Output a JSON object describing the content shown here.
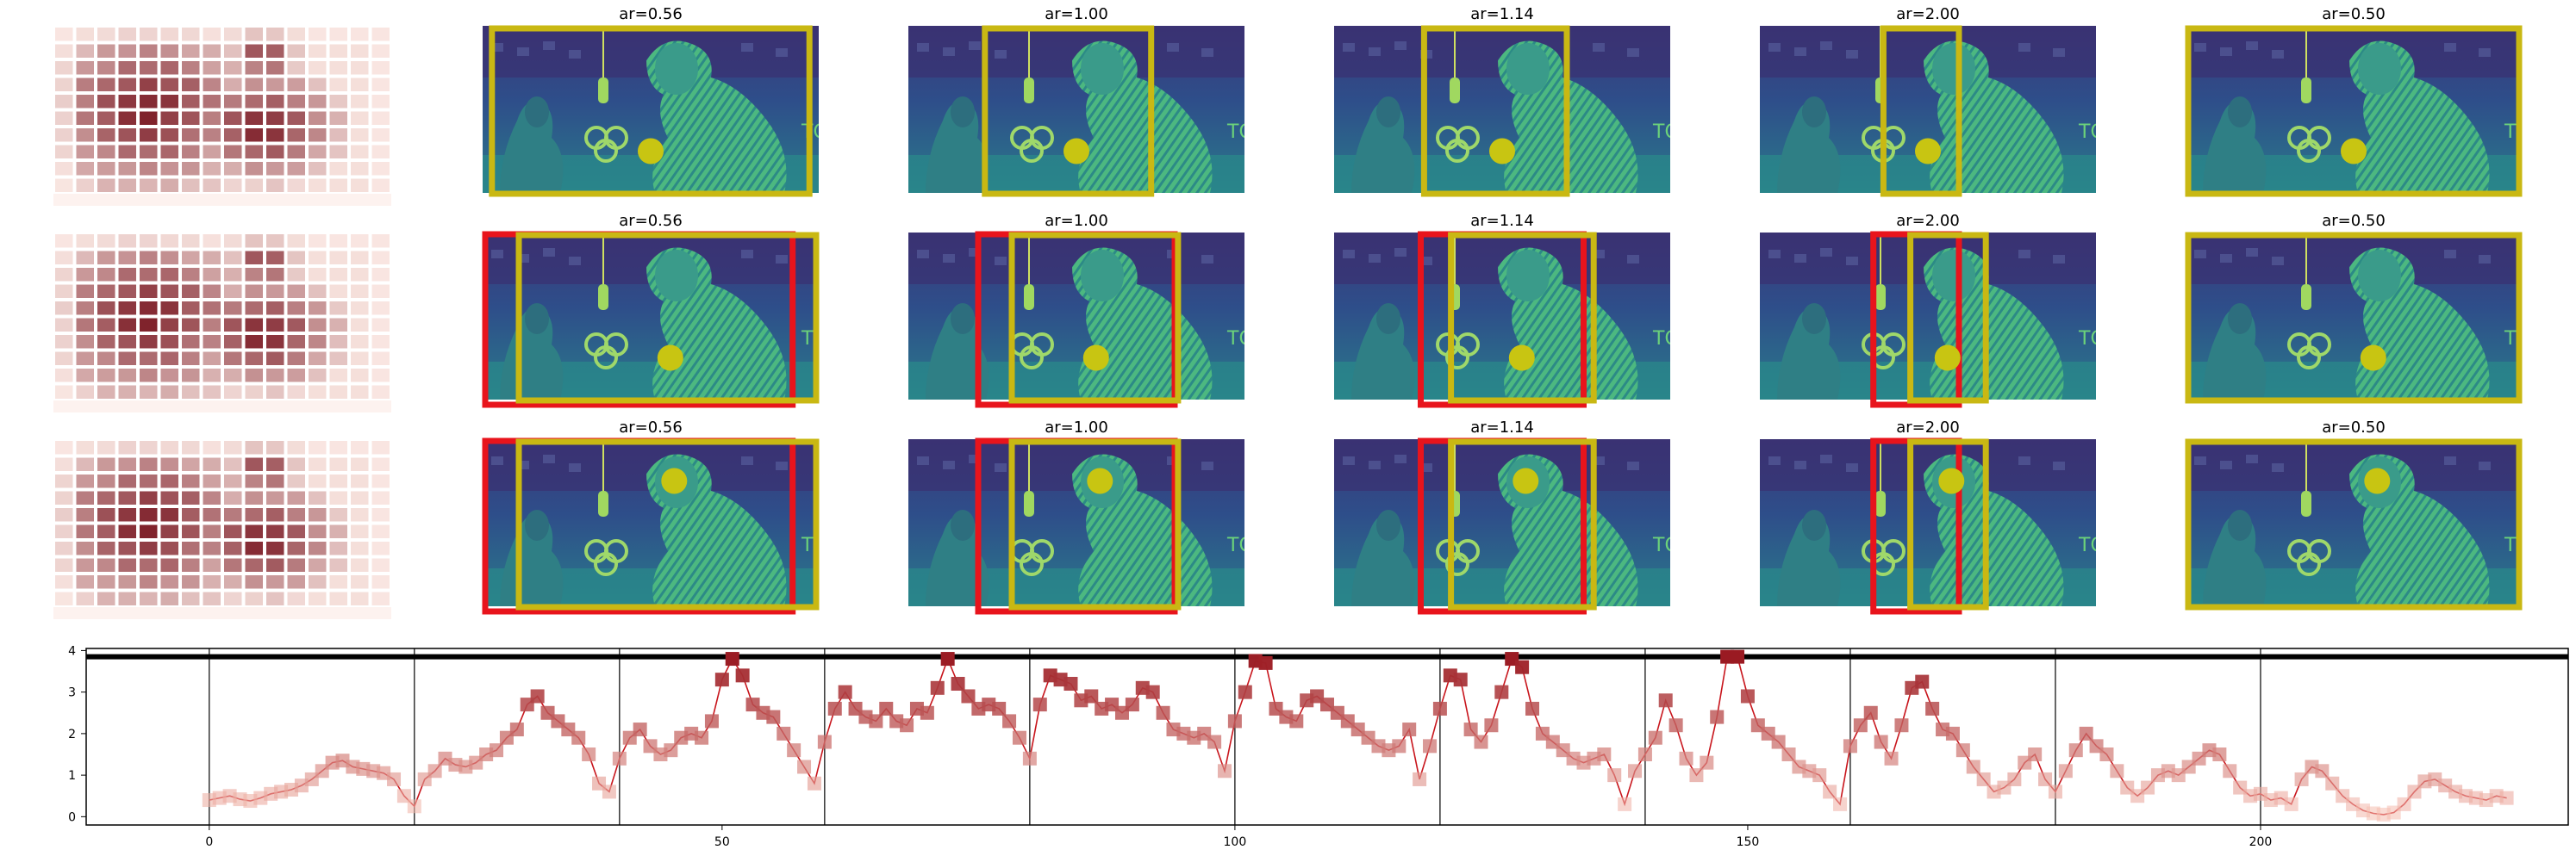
{
  "colors": {
    "frame": "#c9b813",
    "crop_box": "#e8141c",
    "dot": "#c8c512",
    "line": "#c8151c",
    "heatmap_low": "#fbe9e4",
    "heatmap_high": "#7a1a24"
  },
  "panel_titles": [
    "ar=0.56",
    "ar=1.00",
    "ar=1.14",
    "ar=2.00",
    "ar=0.50"
  ],
  "grid_rows": [
    {
      "row": 1,
      "has_crop_box": false,
      "dot": [
        0.5,
        0.75
      ]
    },
    {
      "row": 2,
      "has_crop_box": true,
      "dot": [
        0.52,
        0.75
      ]
    },
    {
      "row": 3,
      "has_crop_box": true,
      "dot": [
        0.57,
        0.25
      ]
    }
  ],
  "chart_data": {
    "type": "line",
    "xlim": [
      -12,
      230
    ],
    "ylim": [
      -0.2,
      4.05
    ],
    "x_ticks": [
      0,
      50,
      100,
      150,
      200
    ],
    "y_ticks": [
      0,
      1,
      2,
      3,
      4
    ],
    "segment_boundaries": [
      0,
      20,
      40,
      60,
      80,
      100,
      120,
      140,
      160,
      180,
      200
    ],
    "threshold": 3.85,
    "grid": false,
    "series": [
      {
        "values": [
          0.4,
          0.45,
          0.5,
          0.42,
          0.38,
          0.45,
          0.55,
          0.6,
          0.65,
          0.75,
          0.9,
          1.1,
          1.3,
          1.35,
          1.2,
          1.15,
          1.1,
          1.05,
          0.9,
          0.5,
          0.25,
          0.9,
          1.1,
          1.4,
          1.25,
          1.2,
          1.3,
          1.5,
          1.6,
          1.9,
          2.1,
          2.7,
          2.9,
          2.5,
          2.3,
          2.1,
          1.9,
          1.5,
          0.8,
          0.6,
          1.4,
          1.9,
          2.1,
          1.7,
          1.5,
          1.6,
          1.9,
          2.0,
          1.9,
          2.3,
          3.3,
          3.8,
          3.4,
          2.7,
          2.5,
          2.4,
          2.0,
          1.6,
          1.2,
          0.8,
          1.8,
          2.6,
          3.0,
          2.6,
          2.4,
          2.3,
          2.6,
          2.3,
          2.2,
          2.6,
          2.5,
          3.1,
          3.8,
          3.2,
          2.9,
          2.6,
          2.7,
          2.6,
          2.3,
          1.9,
          1.4,
          2.7,
          3.4,
          3.3,
          3.2,
          2.8,
          2.9,
          2.6,
          2.7,
          2.5,
          2.7,
          3.1,
          3.0,
          2.5,
          2.1,
          2.0,
          1.9,
          2.0,
          1.8,
          1.1,
          2.3,
          3.0,
          3.75,
          3.7,
          2.6,
          2.4,
          2.3,
          2.8,
          2.9,
          2.7,
          2.5,
          2.3,
          2.1,
          1.9,
          1.7,
          1.6,
          1.7,
          2.1,
          0.9,
          1.7,
          2.6,
          3.4,
          3.3,
          2.1,
          1.8,
          2.2,
          3.0,
          3.8,
          3.6,
          2.6,
          2.0,
          1.8,
          1.6,
          1.4,
          1.3,
          1.4,
          1.5,
          1.0,
          0.3,
          1.1,
          1.5,
          1.9,
          2.8,
          2.2,
          1.4,
          1.0,
          1.3,
          2.4,
          3.85,
          3.85,
          2.9,
          2.2,
          2.0,
          1.8,
          1.5,
          1.2,
          1.1,
          1.0,
          0.6,
          0.3,
          1.7,
          2.2,
          2.5,
          1.8,
          1.4,
          2.2,
          3.1,
          3.25,
          2.6,
          2.1,
          2.0,
          1.6,
          1.2,
          0.9,
          0.6,
          0.7,
          0.9,
          1.3,
          1.5,
          0.9,
          0.6,
          1.1,
          1.6,
          2.0,
          1.7,
          1.5,
          1.1,
          0.7,
          0.5,
          0.7,
          1.0,
          1.1,
          1.0,
          1.2,
          1.4,
          1.6,
          1.5,
          1.1,
          0.7,
          0.5,
          0.55,
          0.4,
          0.45,
          0.3,
          0.9,
          1.2,
          1.1,
          0.8,
          0.5,
          0.3,
          0.15,
          0.08,
          0.05,
          0.1,
          0.3,
          0.6,
          0.85,
          0.9,
          0.75,
          0.6,
          0.5,
          0.45,
          0.4,
          0.5,
          0.45
        ]
      }
    ]
  }
}
